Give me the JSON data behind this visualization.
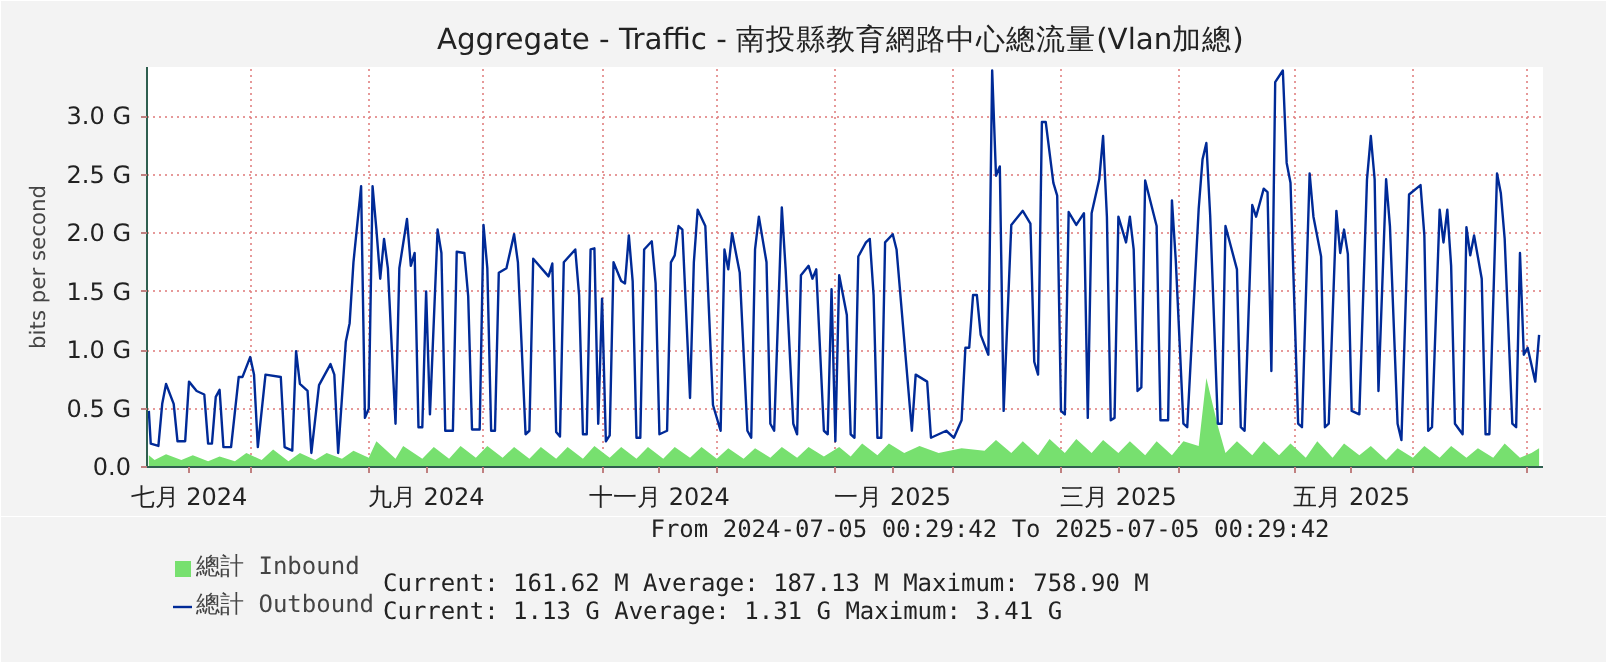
{
  "chart_data": {
    "type": "line",
    "title": "Aggregate - Traffic -  南投縣教育網路中心總流量(Vlan加總)",
    "ylabel": "bits per second",
    "xlim": [
      "2024-07-05T00:29",
      "2025-07-05T00:29"
    ],
    "xticks": [
      {
        "value": "2024-07-16",
        "label": "七月 2024"
      },
      {
        "value": "2024-08-01",
        "label": null
      },
      {
        "value": "2024-09-01",
        "label": null
      },
      {
        "value": "2024-09-16",
        "label": "九月 2024"
      },
      {
        "value": "2024-10-01",
        "label": null
      },
      {
        "value": "2024-11-01",
        "label": null
      },
      {
        "value": "2024-11-16",
        "label": "十一月 2024"
      },
      {
        "value": "2024-12-01",
        "label": null
      },
      {
        "value": "2025-01-01",
        "label": null
      },
      {
        "value": "2025-01-16",
        "label": "一月 2025"
      },
      {
        "value": "2025-02-01",
        "label": null
      },
      {
        "value": "2025-03-01",
        "label": null
      },
      {
        "value": "2025-03-16",
        "label": "三月 2025"
      },
      {
        "value": "2025-04-01",
        "label": null
      },
      {
        "value": "2025-05-01",
        "label": null
      },
      {
        "value": "2025-05-16",
        "label": "五月 2025"
      },
      {
        "value": "2025-06-01",
        "label": null
      },
      {
        "value": "2025-07-01",
        "label": null
      }
    ],
    "ylim": [
      0,
      3.42
    ],
    "yticks": [
      {
        "value": 0,
        "label": "0.0"
      },
      {
        "value": 0.5,
        "label": "0.5 G"
      },
      {
        "value": 1.0,
        "label": "1.0 G"
      },
      {
        "value": 1.5,
        "label": "1.5 G"
      },
      {
        "value": 2.0,
        "label": "2.0 G"
      },
      {
        "value": 2.5,
        "label": "2.5 G"
      },
      {
        "value": 3.0,
        "label": "3.0 G"
      }
    ],
    "grid": true,
    "legend": "bottom left",
    "annotations": [
      "From 2024-07-05 00:29:42 To 2025-07-05 00:29:42",
      "Current:  161.62 M   Average:  187.13 M   Maximum:  758.90 M",
      "Current:     1.13 G   Average:     1.31 G   Maximum:     3.41 G"
    ],
    "series": [
      {
        "name": "總計 Inbound",
        "type": "area",
        "color": "#77e06f",
        "x": [
          "2024-07-05T12:00",
          "2024-07-07",
          "2024-07-10",
          "2024-07-14",
          "2024-07-17",
          "2024-07-21",
          "2024-07-24",
          "2024-07-28",
          "2024-07-31",
          "2024-08-04",
          "2024-08-07",
          "2024-08-11",
          "2024-08-14",
          "2024-08-18",
          "2024-08-21",
          "2024-08-25",
          "2024-08-28",
          "2024-09-01",
          "2024-09-03",
          "2024-09-08",
          "2024-09-10",
          "2024-09-15",
          "2024-09-18",
          "2024-09-22",
          "2024-09-25",
          "2024-09-29",
          "2024-10-02",
          "2024-10-06",
          "2024-10-09",
          "2024-10-13",
          "2024-10-16",
          "2024-10-20",
          "2024-10-23",
          "2024-10-27",
          "2024-10-30",
          "2024-11-03",
          "2024-11-06",
          "2024-11-10",
          "2024-11-13",
          "2024-11-17",
          "2024-11-20",
          "2024-11-24",
          "2024-11-27",
          "2024-12-01",
          "2024-12-04",
          "2024-12-08",
          "2024-12-11",
          "2024-12-15",
          "2024-12-18",
          "2024-12-22",
          "2024-12-25",
          "2024-12-29",
          "2025-01-02",
          "2025-01-05",
          "2025-01-08",
          "2025-01-12",
          "2025-01-15",
          "2025-01-19",
          "2025-01-23",
          "2025-01-28",
          "2025-02-03",
          "2025-02-09",
          "2025-02-12",
          "2025-02-16",
          "2025-02-19",
          "2025-02-23",
          "2025-02-26",
          "2025-03-02",
          "2025-03-05",
          "2025-03-09",
          "2025-03-12",
          "2025-03-16",
          "2025-03-19",
          "2025-03-23",
          "2025-03-26",
          "2025-03-30",
          "2025-04-02",
          "2025-04-06",
          "2025-04-08",
          "2025-04-11",
          "2025-04-13",
          "2025-04-16",
          "2025-04-20",
          "2025-04-23",
          "2025-04-27",
          "2025-04-30",
          "2025-05-04",
          "2025-05-07",
          "2025-05-11",
          "2025-05-14",
          "2025-05-18",
          "2025-05-21",
          "2025-05-25",
          "2025-05-28",
          "2025-06-01",
          "2025-06-04",
          "2025-06-08",
          "2025-06-11",
          "2025-06-15",
          "2025-06-18",
          "2025-06-22",
          "2025-06-25",
          "2025-06-29",
          "2025-07-02",
          "2025-07-04"
        ],
        "values": [
          0.1,
          0.06,
          0.11,
          0.06,
          0.1,
          0.05,
          0.09,
          0.05,
          0.12,
          0.06,
          0.15,
          0.05,
          0.12,
          0.06,
          0.12,
          0.07,
          0.14,
          0.08,
          0.22,
          0.07,
          0.18,
          0.07,
          0.17,
          0.07,
          0.18,
          0.08,
          0.18,
          0.08,
          0.17,
          0.07,
          0.17,
          0.07,
          0.17,
          0.07,
          0.18,
          0.08,
          0.17,
          0.07,
          0.17,
          0.07,
          0.17,
          0.08,
          0.17,
          0.07,
          0.16,
          0.07,
          0.16,
          0.08,
          0.17,
          0.08,
          0.17,
          0.09,
          0.17,
          0.09,
          0.2,
          0.1,
          0.2,
          0.12,
          0.18,
          0.12,
          0.16,
          0.14,
          0.23,
          0.12,
          0.22,
          0.1,
          0.24,
          0.12,
          0.24,
          0.12,
          0.23,
          0.12,
          0.22,
          0.1,
          0.22,
          0.1,
          0.22,
          0.18,
          0.76,
          0.35,
          0.12,
          0.22,
          0.1,
          0.22,
          0.1,
          0.2,
          0.08,
          0.22,
          0.08,
          0.2,
          0.1,
          0.18,
          0.06,
          0.16,
          0.08,
          0.18,
          0.08,
          0.18,
          0.08,
          0.16,
          0.08,
          0.2,
          0.08,
          0.12,
          0.16
        ]
      },
      {
        "name": "總計 Outbound",
        "color": "#002a97",
        "x": [
          "2024-07-05T12:00",
          "2024-07-06",
          "2024-07-08",
          "2024-07-09",
          "2024-07-10",
          "2024-07-12",
          "2024-07-13",
          "2024-07-15",
          "2024-07-16",
          "2024-07-18",
          "2024-07-20",
          "2024-07-21",
          "2024-07-22",
          "2024-07-23",
          "2024-07-24",
          "2024-07-25",
          "2024-07-27",
          "2024-07-29",
          "2024-07-30",
          "2024-08-01",
          "2024-08-02",
          "2024-08-03",
          "2024-08-05",
          "2024-08-09",
          "2024-08-10",
          "2024-08-12",
          "2024-08-13",
          "2024-08-14",
          "2024-08-16",
          "2024-08-17",
          "2024-08-19",
          "2024-08-22",
          "2024-08-23",
          "2024-08-24",
          "2024-08-26",
          "2024-08-27",
          "2024-08-28",
          "2024-08-30",
          "2024-08-31",
          "2024-09-01",
          "2024-09-02",
          "2024-09-03",
          "2024-09-04",
          "2024-09-05",
          "2024-09-06",
          "2024-09-08",
          "2024-09-09",
          "2024-09-11",
          "2024-09-12",
          "2024-09-13",
          "2024-09-14",
          "2024-09-15",
          "2024-09-16",
          "2024-09-17",
          "2024-09-19",
          "2024-09-20",
          "2024-09-21",
          "2024-09-23",
          "2024-09-24",
          "2024-09-26",
          "2024-09-27",
          "2024-09-28",
          "2024-09-30",
          "2024-10-01",
          "2024-10-02",
          "2024-10-03",
          "2024-10-04",
          "2024-10-05",
          "2024-10-07",
          "2024-10-09",
          "2024-10-10",
          "2024-10-12",
          "2024-10-13",
          "2024-10-14",
          "2024-10-18",
          "2024-10-19",
          "2024-10-20",
          "2024-10-21",
          "2024-10-22",
          "2024-10-25",
          "2024-10-26",
          "2024-10-27",
          "2024-10-28",
          "2024-10-29",
          "2024-10-30",
          "2024-10-31",
          "2024-11-01",
          "2024-11-02",
          "2024-11-03",
          "2024-11-04",
          "2024-11-06",
          "2024-11-07",
          "2024-11-08",
          "2024-11-09",
          "2024-11-10",
          "2024-11-11",
          "2024-11-12",
          "2024-11-14",
          "2024-11-15",
          "2024-11-16",
          "2024-11-18",
          "2024-11-19",
          "2024-11-20",
          "2024-11-21",
          "2024-11-22",
          "2024-11-24",
          "2024-11-25",
          "2024-11-26",
          "2024-11-28",
          "2024-11-30",
          "2024-12-02",
          "2024-12-03",
          "2024-12-04",
          "2024-12-05",
          "2024-12-07",
          "2024-12-09",
          "2024-12-10",
          "2024-12-11",
          "2024-12-12",
          "2024-12-14",
          "2024-12-15",
          "2024-12-16",
          "2024-12-18",
          "2024-12-19",
          "2024-12-21",
          "2024-12-22",
          "2024-12-23",
          "2024-12-25",
          "2024-12-26",
          "2024-12-27",
          "2024-12-29",
          "2024-12-30",
          "2024-12-31",
          "2025-01-01",
          "2025-01-02",
          "2025-01-04",
          "2025-01-05",
          "2025-01-06",
          "2025-01-07",
          "2025-01-09",
          "2025-01-10",
          "2025-01-11",
          "2025-01-12",
          "2025-01-13",
          "2025-01-14",
          "2025-01-16",
          "2025-01-17",
          "2025-01-21",
          "2025-01-22",
          "2025-01-25",
          "2025-01-26",
          "2025-01-30",
          "2025-02-01",
          "2025-02-03",
          "2025-02-04",
          "2025-02-05",
          "2025-02-06",
          "2025-02-07",
          "2025-02-08",
          "2025-02-10",
          "2025-02-11",
          "2025-02-12",
          "2025-02-13",
          "2025-02-14",
          "2025-02-16",
          "2025-02-19",
          "2025-02-21",
          "2025-02-22",
          "2025-02-23",
          "2025-02-24",
          "2025-02-25",
          "2025-02-27",
          "2025-02-28",
          "2025-03-01",
          "2025-03-02",
          "2025-03-03",
          "2025-03-05",
          "2025-03-07",
          "2025-03-08",
          "2025-03-09",
          "2025-03-11",
          "2025-03-12",
          "2025-03-13",
          "2025-03-14",
          "2025-03-15",
          "2025-03-16",
          "2025-03-18",
          "2025-03-19",
          "2025-03-20",
          "2025-03-21",
          "2025-03-22",
          "2025-03-23",
          "2025-03-26",
          "2025-03-27",
          "2025-03-29",
          "2025-03-30",
          "2025-03-31",
          "2025-04-02",
          "2025-04-03",
          "2025-04-06",
          "2025-04-07",
          "2025-04-08",
          "2025-04-09",
          "2025-04-11",
          "2025-04-12",
          "2025-04-13",
          "2025-04-16",
          "2025-04-17",
          "2025-04-18",
          "2025-04-20",
          "2025-04-21",
          "2025-04-23",
          "2025-04-24",
          "2025-04-25",
          "2025-04-26",
          "2025-04-28",
          "2025-04-29",
          "2025-04-30",
          "2025-05-02",
          "2025-05-03",
          "2025-05-05",
          "2025-05-06",
          "2025-05-08",
          "2025-05-09",
          "2025-05-10",
          "2025-05-12",
          "2025-05-13",
          "2025-05-14",
          "2025-05-15",
          "2025-05-16",
          "2025-05-18",
          "2025-05-20",
          "2025-05-21",
          "2025-05-22",
          "2025-05-23",
          "2025-05-25",
          "2025-05-26",
          "2025-05-28",
          "2025-05-29",
          "2025-05-31",
          "2025-06-03",
          "2025-06-04",
          "2025-06-05",
          "2025-06-06",
          "2025-06-08",
          "2025-06-09",
          "2025-06-10",
          "2025-06-11",
          "2025-06-12",
          "2025-06-14",
          "2025-06-15",
          "2025-06-16",
          "2025-06-17",
          "2025-06-19",
          "2025-06-20",
          "2025-06-21",
          "2025-06-23",
          "2025-06-24",
          "2025-06-25",
          "2025-06-27",
          "2025-06-28",
          "2025-06-29",
          "2025-06-30",
          "2025-07-01",
          "2025-07-03",
          "2025-07-04"
        ],
        "values": [
          0.48,
          0.2,
          0.18,
          0.54,
          0.71,
          0.54,
          0.22,
          0.22,
          0.73,
          0.65,
          0.62,
          0.2,
          0.2,
          0.6,
          0.66,
          0.17,
          0.17,
          0.77,
          0.77,
          0.94,
          0.79,
          0.17,
          0.79,
          0.77,
          0.17,
          0.14,
          0.99,
          0.71,
          0.65,
          0.12,
          0.7,
          0.88,
          0.79,
          0.12,
          1.07,
          1.23,
          1.75,
          2.4,
          0.42,
          0.5,
          2.4,
          2.03,
          1.61,
          1.95,
          1.7,
          0.37,
          1.7,
          2.12,
          1.72,
          1.83,
          0.34,
          0.34,
          1.5,
          0.45,
          2.03,
          1.83,
          0.31,
          0.31,
          1.84,
          1.83,
          1.46,
          0.32,
          0.32,
          2.07,
          1.7,
          0.31,
          0.31,
          1.66,
          1.7,
          1.99,
          1.75,
          0.28,
          0.31,
          1.78,
          1.63,
          1.74,
          0.3,
          0.26,
          1.75,
          1.86,
          1.47,
          0.28,
          0.28,
          1.86,
          1.87,
          0.37,
          1.44,
          0.22,
          0.27,
          1.75,
          1.59,
          1.57,
          1.98,
          1.59,
          0.25,
          0.25,
          1.86,
          1.93,
          1.57,
          0.28,
          0.31,
          1.75,
          1.81,
          2.06,
          2.03,
          0.59,
          1.75,
          2.2,
          2.06,
          0.53,
          0.31,
          1.86,
          1.69,
          2.0,
          1.66,
          0.31,
          0.25,
          1.86,
          2.14,
          1.75,
          0.37,
          0.31,
          2.22,
          1.69,
          0.37,
          0.28,
          1.64,
          1.72,
          1.61,
          1.69,
          0.31,
          0.28,
          1.52,
          0.22,
          1.64,
          1.3,
          0.28,
          0.25,
          1.8,
          1.92,
          1.95,
          1.47,
          0.25,
          0.25,
          1.92,
          1.99,
          1.86,
          0.31,
          0.79,
          0.73,
          0.25,
          0.31,
          0.25,
          0.4,
          1.02,
          1.02,
          1.47,
          1.47,
          1.13,
          0.96,
          3.39,
          2.49,
          2.57,
          0.48,
          2.07,
          2.19,
          2.08,
          0.9,
          0.79,
          2.95,
          2.95,
          2.43,
          2.32,
          0.48,
          0.45,
          2.18,
          2.07,
          2.17,
          0.42,
          2.17,
          2.46,
          2.83,
          2.14,
          0.4,
          0.42,
          2.14,
          1.92,
          2.14,
          1.86,
          0.65,
          0.68,
          2.45,
          2.06,
          0.4,
          0.4,
          2.28,
          1.77,
          0.37,
          0.34,
          2.21,
          2.63,
          2.77,
          2.15,
          0.37,
          0.37,
          2.06,
          1.69,
          0.34,
          0.31,
          2.24,
          2.14,
          2.38,
          2.35,
          0.82,
          3.29,
          3.39,
          2.6,
          2.43,
          0.37,
          0.34,
          2.51,
          2.14,
          1.8,
          0.34,
          0.37,
          2.19,
          1.83,
          2.03,
          1.82,
          0.48,
          0.45,
          2.46,
          2.83,
          2.46,
          0.65,
          2.46,
          2.06,
          0.37,
          0.23,
          2.33,
          2.41,
          1.98,
          0.31,
          0.34,
          2.2,
          1.92,
          2.2,
          1.72,
          0.37,
          0.28,
          2.05,
          1.81,
          1.98,
          1.61,
          0.28,
          0.28,
          2.51,
          2.34,
          1.95,
          0.37,
          0.34,
          1.83,
          0.96,
          1.02,
          0.73,
          1.13
        ]
      }
    ]
  }
}
